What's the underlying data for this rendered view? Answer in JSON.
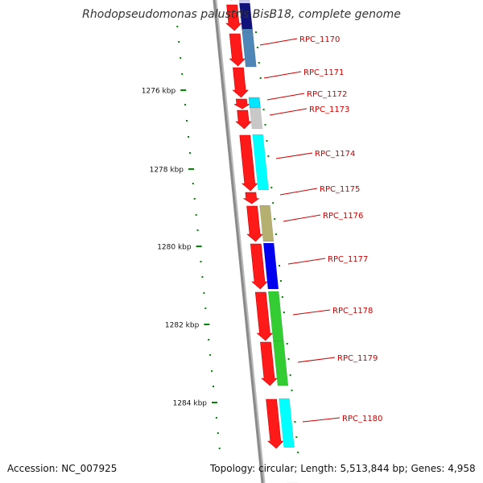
{
  "title": "Rhodopseudomonas palustris BisB18, complete genome",
  "accession_text": "Accession: NC_007925",
  "topology_text": "Topology: circular; Length: 5,513,844 bp; Genes: 4,958",
  "colors": {
    "backbone": "#8a8a8a",
    "forward_genes": "#ff1a1a",
    "tick_marks": "#008800",
    "labels": "#cc0000",
    "label_lines": "#cc0000"
  },
  "scale_labels": [
    "1276 kbp",
    "1278 kbp",
    "1280 kbp",
    "1282 kbp",
    "1284 kbp"
  ],
  "gene_labels": [
    "RPC_1170",
    "RPC_1171",
    "RPC_1172",
    "RPC_1173",
    "RPC_1174",
    "RPC_1175",
    "RPC_1176",
    "RPC_1177",
    "RPC_1178",
    "RPC_1179",
    "RPC_1180"
  ],
  "cog_colors": [
    "#ccccee",
    "#11117a",
    "#4f86b8",
    "#4f86b8",
    "#11117a",
    "#00e5ff",
    "#c8c8c8",
    "#00ffff",
    "#b5b070",
    "#0000ee",
    "#33cc33",
    "#33cc33",
    "#00ffff",
    "#0000ee"
  ]
}
